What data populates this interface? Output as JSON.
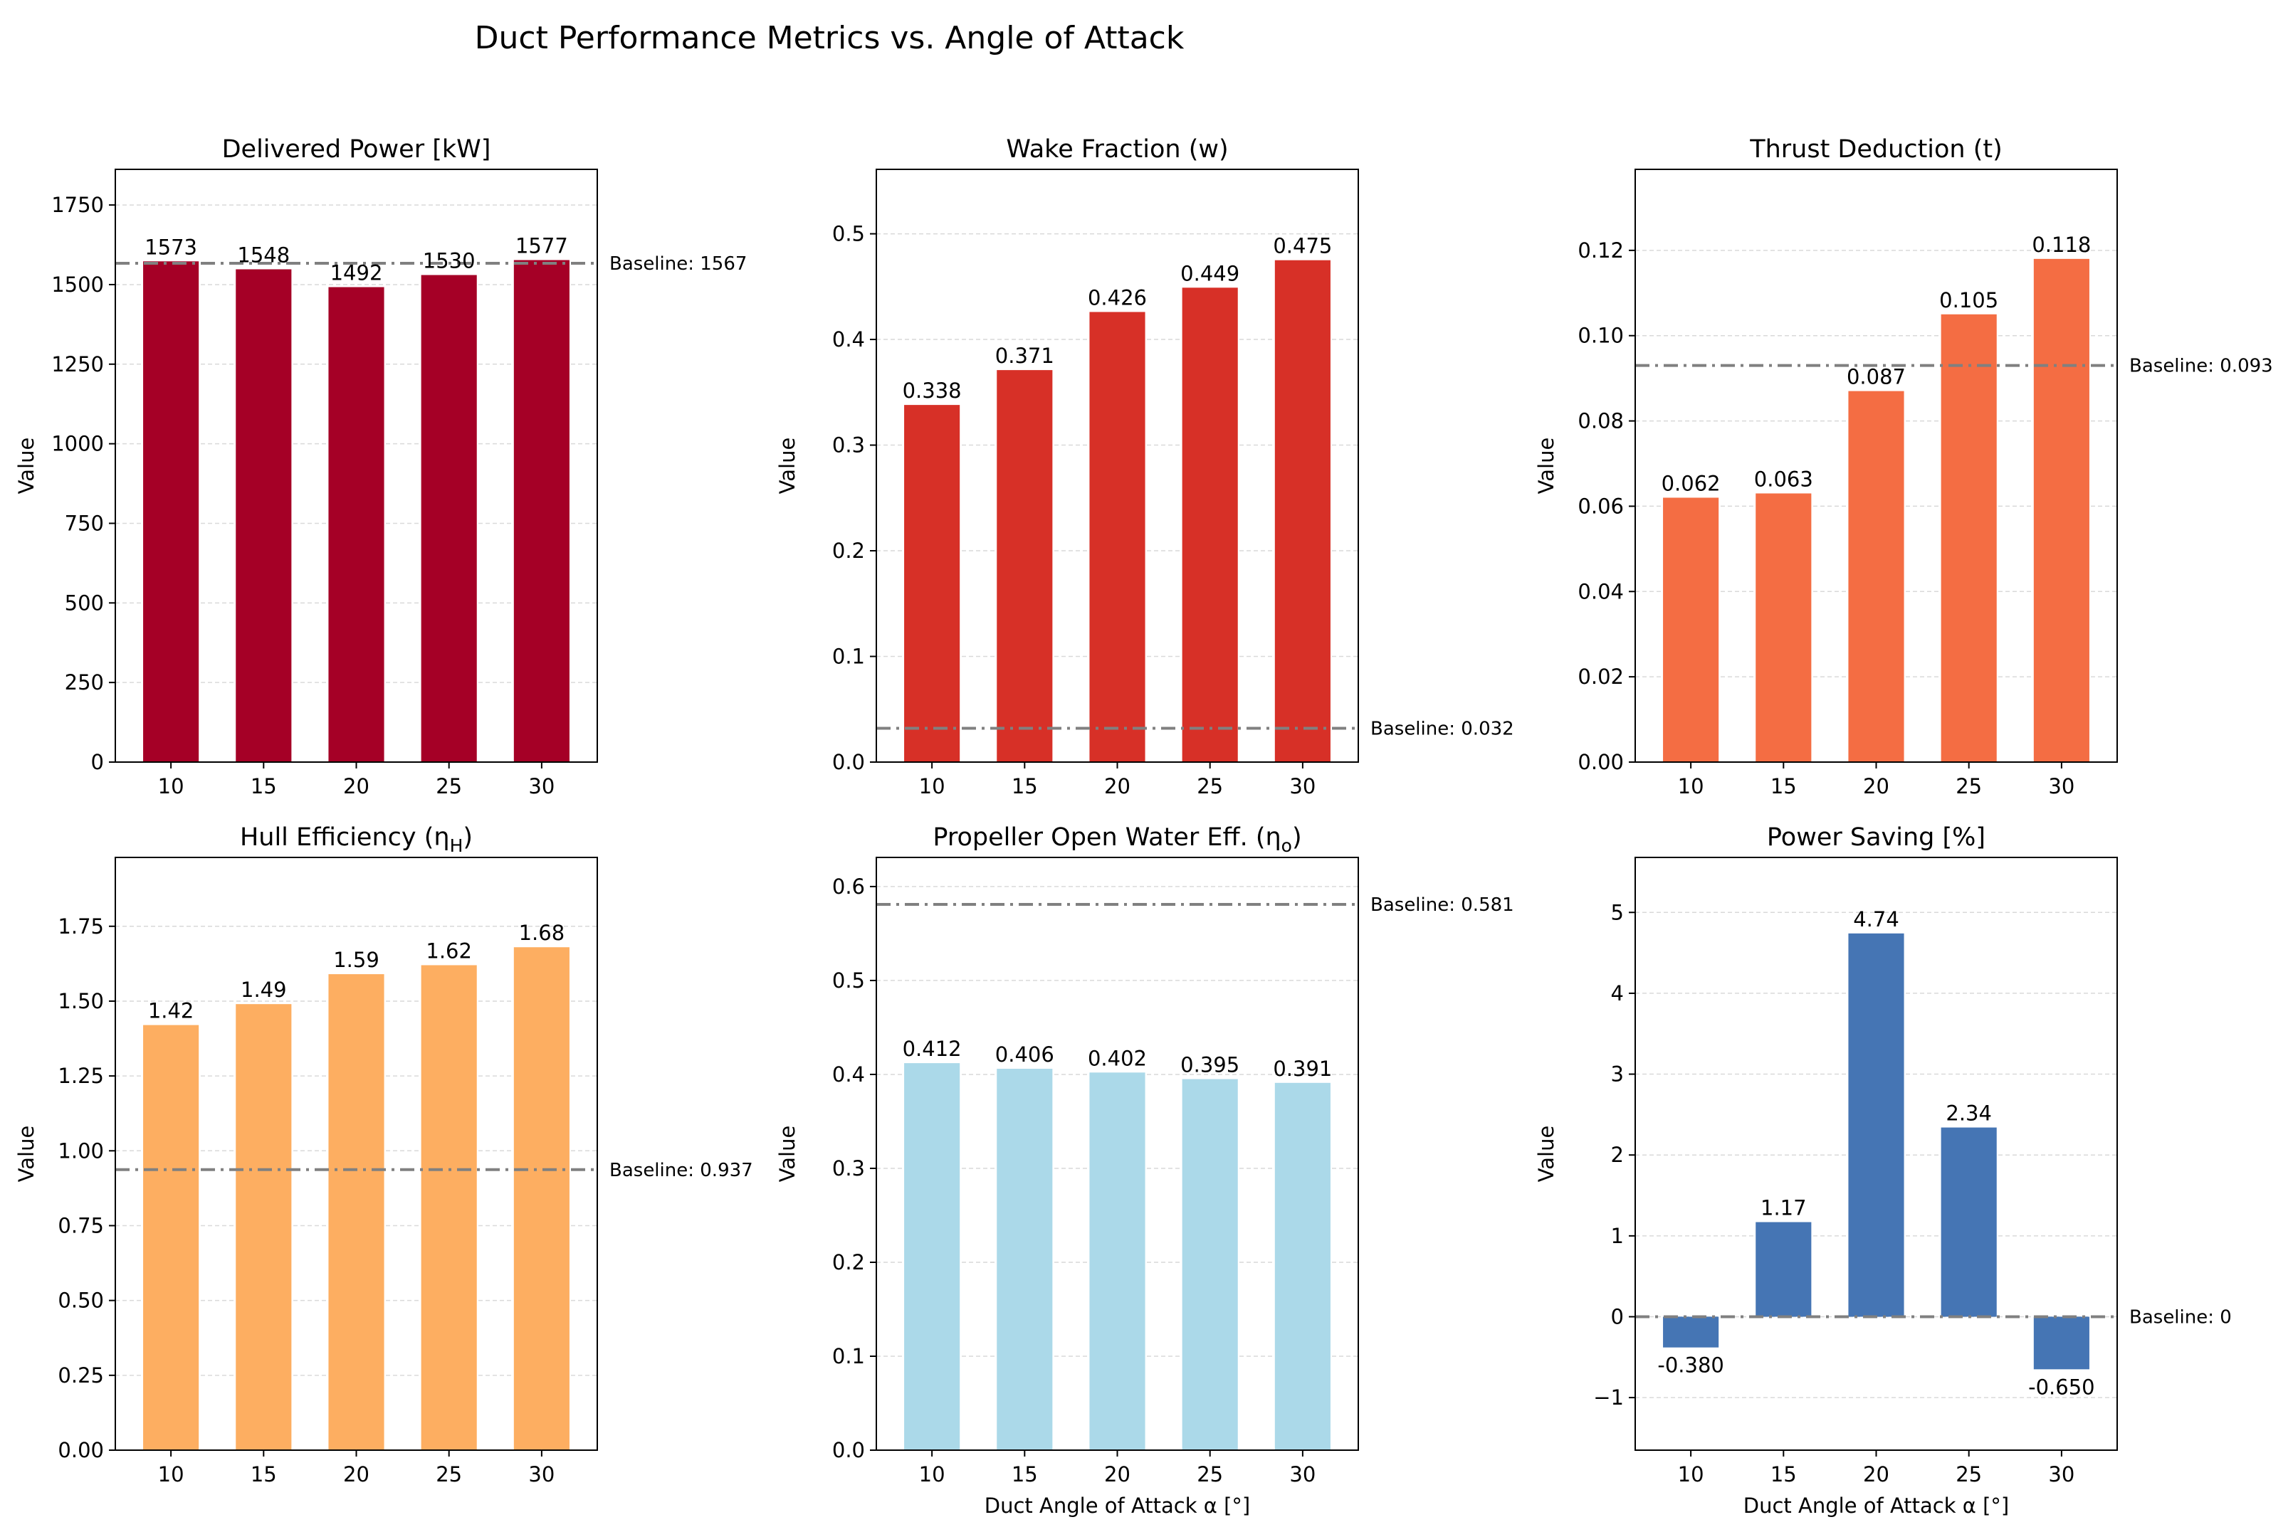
{
  "title": "Duct Performance Metrics vs. Angle of Attack",
  "colors": {
    "delivered_power": "#a50026",
    "wake_fraction": "#d73027",
    "thrust_deduction": "#f46d43",
    "hull_efficiency": "#fdae61",
    "propeller_eff": "#abd9e9",
    "power_saving": "#4575b4",
    "baseline": "#808080"
  },
  "chart_data": [
    {
      "type": "bar",
      "id": "delivered-power",
      "title": "Delivered Power [kW]",
      "categories": [
        "10",
        "15",
        "20",
        "25",
        "30"
      ],
      "values": [
        1573,
        1548,
        1492,
        1530,
        1577
      ],
      "value_labels": [
        "1573",
        "1548",
        "1492",
        "1530",
        "1577"
      ],
      "baseline": 1567,
      "baseline_label": "Baseline: 1567",
      "ylabel": "Value",
      "xlabel": "",
      "ylim": [
        0,
        1862
      ],
      "yticks": [
        0,
        250,
        500,
        750,
        1000,
        1250,
        1500,
        1750
      ],
      "ytick_labels": [
        "0",
        "250",
        "500",
        "750",
        "1000",
        "1250",
        "1500",
        "1750"
      ],
      "color": "#a50026"
    },
    {
      "type": "bar",
      "id": "wake-fraction",
      "title": "Wake Fraction (w)",
      "categories": [
        "10",
        "15",
        "20",
        "25",
        "30"
      ],
      "values": [
        0.338,
        0.371,
        0.426,
        0.449,
        0.475
      ],
      "value_labels": [
        "0.338",
        "0.371",
        "0.426",
        "0.449",
        "0.475"
      ],
      "baseline": 0.032,
      "baseline_label": "Baseline: 0.032",
      "ylabel": "Value",
      "xlabel": "",
      "ylim": [
        0,
        0.561
      ],
      "yticks": [
        0.0,
        0.1,
        0.2,
        0.3,
        0.4,
        0.5
      ],
      "ytick_labels": [
        "0.0",
        "0.1",
        "0.2",
        "0.3",
        "0.4",
        "0.5"
      ],
      "color": "#d73027"
    },
    {
      "type": "bar",
      "id": "thrust-deduction",
      "title": "Thrust Deduction (t)",
      "categories": [
        "10",
        "15",
        "20",
        "25",
        "30"
      ],
      "values": [
        0.062,
        0.063,
        0.087,
        0.105,
        0.118
      ],
      "value_labels": [
        "0.062",
        "0.063",
        "0.087",
        "0.105",
        "0.118"
      ],
      "baseline": 0.093,
      "baseline_label": "Baseline: 0.093",
      "ylabel": "Value",
      "xlabel": "",
      "ylim": [
        0,
        0.139
      ],
      "yticks": [
        0.0,
        0.02,
        0.04,
        0.06,
        0.08,
        0.1,
        0.12
      ],
      "ytick_labels": [
        "0.00",
        "0.02",
        "0.04",
        "0.06",
        "0.08",
        "0.10",
        "0.12"
      ],
      "color": "#f46d43"
    },
    {
      "type": "bar",
      "id": "hull-efficiency",
      "title": "Hull Efficiency (η",
      "title_sub": "H",
      "title_close": ")",
      "categories": [
        "10",
        "15",
        "20",
        "25",
        "30"
      ],
      "values": [
        1.42,
        1.49,
        1.59,
        1.62,
        1.68
      ],
      "value_labels": [
        "1.42",
        "1.49",
        "1.59",
        "1.62",
        "1.68"
      ],
      "baseline": 0.937,
      "baseline_label": "Baseline: 0.937",
      "ylabel": "Value",
      "xlabel": "",
      "ylim": [
        0,
        1.98
      ],
      "yticks": [
        0.0,
        0.25,
        0.5,
        0.75,
        1.0,
        1.25,
        1.5,
        1.75
      ],
      "ytick_labels": [
        "0.00",
        "0.25",
        "0.50",
        "0.75",
        "1.00",
        "1.25",
        "1.50",
        "1.75"
      ],
      "color": "#fdae61"
    },
    {
      "type": "bar",
      "id": "propeller-eff",
      "title": "Propeller Open Water Eff. (η",
      "title_sub": "o",
      "title_close": ")",
      "categories": [
        "10",
        "15",
        "20",
        "25",
        "30"
      ],
      "values": [
        0.412,
        0.406,
        0.402,
        0.395,
        0.391
      ],
      "value_labels": [
        "0.412",
        "0.406",
        "0.402",
        "0.395",
        "0.391"
      ],
      "baseline": 0.581,
      "baseline_label": "Baseline: 0.581",
      "ylabel": "Value",
      "xlabel": "Duct Angle of Attack α [°]",
      "ylim": [
        0,
        0.631
      ],
      "yticks": [
        0.0,
        0.1,
        0.2,
        0.3,
        0.4,
        0.5,
        0.6
      ],
      "ytick_labels": [
        "0.0",
        "0.1",
        "0.2",
        "0.3",
        "0.4",
        "0.5",
        "0.6"
      ],
      "color": "#abd9e9"
    },
    {
      "type": "bar",
      "id": "power-saving",
      "title": "Power Saving [%]",
      "categories": [
        "10",
        "15",
        "20",
        "25",
        "30"
      ],
      "values": [
        -0.38,
        1.17,
        4.74,
        2.34,
        -0.65
      ],
      "value_labels": [
        "-0.380",
        "1.17",
        "4.74",
        "2.34",
        "-0.650"
      ],
      "baseline": 0,
      "baseline_label": "Baseline: 0",
      "ylabel": "Value",
      "xlabel": "Duct Angle of Attack α [°]",
      "ylim": [
        -1.65,
        5.68
      ],
      "yticks": [
        -1,
        0,
        1,
        2,
        3,
        4,
        5
      ],
      "ytick_labels": [
        "−1",
        "0",
        "1",
        "2",
        "3",
        "4",
        "5"
      ],
      "color": "#4575b4"
    }
  ]
}
